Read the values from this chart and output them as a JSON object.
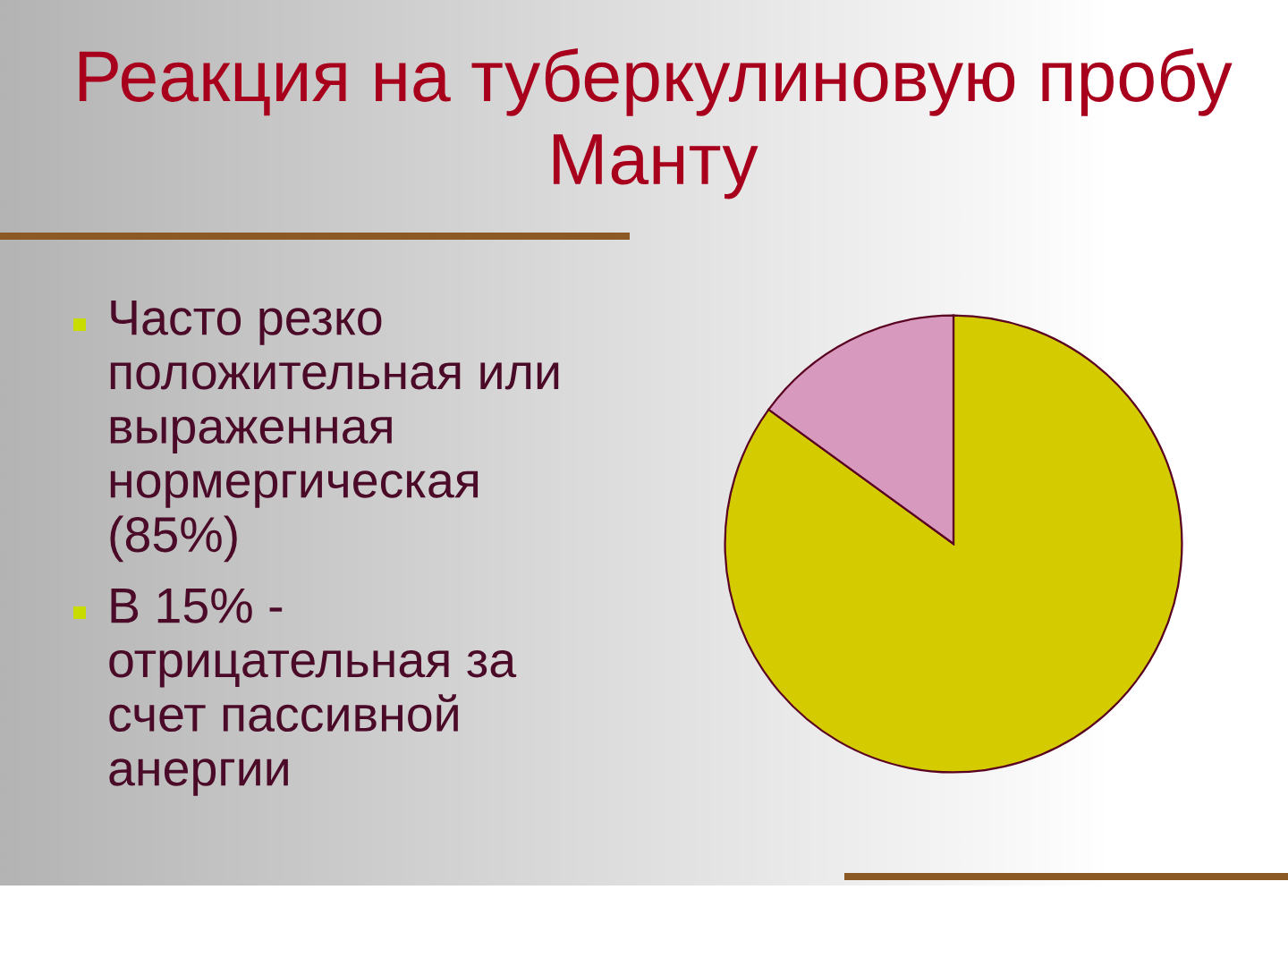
{
  "chart_data": {
    "type": "pie",
    "title": "Реакция на туберкулиновую пробу Манту",
    "categories": [
      null,
      null
    ],
    "values": [
      85,
      15
    ],
    "colors": [
      "#d4cc00",
      "#d899bf"
    ],
    "annotations": [
      "Часто резко\nположительная или\nвыраженная\nнормергическая\n(85%)",
      "В 15% -\nотрицательная за\nсчет пассивной\nанергии"
    ]
  }
}
